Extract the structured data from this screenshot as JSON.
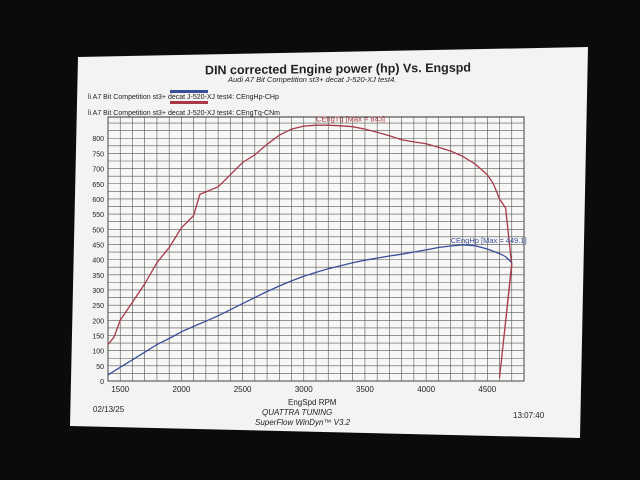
{
  "header": {
    "title": "DIN corrected Engine power (hp) Vs. Engspd",
    "subtitle": "Audi A7 Bit Competition st3+ decat J-520-XJ test4."
  },
  "legend": [
    {
      "label": "li A7 Bit Competition st3+ decat J-520-XJ test4: CEngHp-CHp",
      "color": "#3a4f9a"
    },
    {
      "label": "li A7 Bit Competition st3+ decat J-520-XJ test4: CEngTq-CNm",
      "color": "#a83a48"
    }
  ],
  "footer": {
    "date": "02/13/25",
    "time": "13:07:40",
    "brand": "QUATTRA TUNING",
    "software": "SuperFlow WinDyn™ V3.2"
  },
  "chart_data": {
    "type": "line",
    "xlabel": "EngSpd RPM",
    "ylabel": "",
    "xlim": [
      1400,
      4800
    ],
    "ylim": [
      0,
      870
    ],
    "x_ticks": [
      "1500",
      "2000",
      "2500",
      "3000",
      "3500",
      "4000",
      "4500"
    ],
    "y_ticks": [
      "0",
      "50",
      "100",
      "150",
      "200",
      "250",
      "300",
      "350",
      "400",
      "450",
      "500",
      "550",
      "600",
      "650",
      "700",
      "750",
      "800"
    ],
    "grid": true,
    "series": [
      {
        "name": "CEngTq",
        "color": "#a83a48",
        "x": [
          1400,
          1450,
          1500,
          1600,
          1700,
          1800,
          1900,
          2000,
          2100,
          2150,
          2300,
          2400,
          2500,
          2600,
          2700,
          2800,
          2900,
          3000,
          3100,
          3200,
          3300,
          3400,
          3500,
          3600,
          3700,
          3800,
          3900,
          4000,
          4100,
          4200,
          4300,
          4400,
          4500,
          4550,
          4600,
          4650,
          4700
        ],
        "y": [
          120,
          145,
          200,
          260,
          320,
          390,
          440,
          505,
          545,
          615,
          640,
          680,
          720,
          745,
          780,
          810,
          830,
          840,
          843,
          843,
          841,
          838,
          830,
          820,
          808,
          795,
          788,
          782,
          770,
          758,
          740,
          715,
          680,
          650,
          600,
          570,
          380
        ]
      },
      {
        "name": "CEngHp",
        "color": "#3a4f9a",
        "x": [
          1400,
          1500,
          1600,
          1700,
          1800,
          1900,
          2000,
          2100,
          2200,
          2300,
          2400,
          2500,
          2600,
          2700,
          2800,
          2900,
          3000,
          3100,
          3200,
          3300,
          3400,
          3500,
          3600,
          3700,
          3800,
          3900,
          4000,
          4100,
          4200,
          4300,
          4400,
          4500,
          4600,
          4650,
          4700
        ],
        "y": [
          20,
          45,
          70,
          95,
          120,
          140,
          162,
          180,
          197,
          215,
          235,
          255,
          275,
          295,
          313,
          330,
          345,
          358,
          370,
          380,
          390,
          398,
          405,
          412,
          418,
          425,
          432,
          440,
          445,
          449,
          446,
          435,
          420,
          410,
          390
        ]
      }
    ],
    "annotations": [
      {
        "text": "CEngTq [Max = 843]",
        "x": 3100,
        "y": 855
      },
      {
        "text": "CEngHp [Max = 449.1]",
        "x": 4200,
        "y": 455
      }
    ]
  }
}
